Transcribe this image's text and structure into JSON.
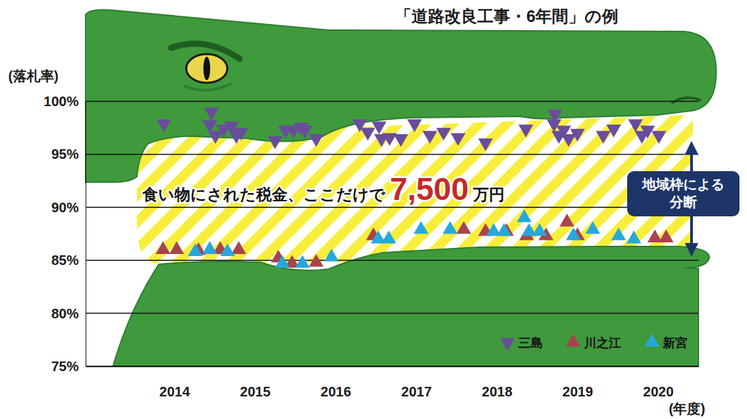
{
  "chart_data": {
    "type": "scatter",
    "title": "「道路改良工事・6年間」の例",
    "y_label": "(落札率)",
    "x_label": "(年度)",
    "xlim": [
      2012.9,
      2020.5
    ],
    "xticks": [
      2014,
      2015,
      2016,
      2017,
      2018,
      2019,
      2020
    ],
    "ylim": [
      75,
      100
    ],
    "yticks": [
      {
        "value": 75,
        "label": "75%"
      },
      {
        "value": 80,
        "label": "80%"
      },
      {
        "value": 85,
        "label": "85%"
      },
      {
        "value": 90,
        "label": "90%"
      },
      {
        "value": 95,
        "label": "95%"
      },
      {
        "value": 100,
        "label": "100%"
      }
    ],
    "grid": true,
    "legend": "lower right",
    "annotations": [
      {
        "text": "食い物にされた税金、ここだけで 7,500 万円"
      },
      {
        "lines": [
          "地域枠による",
          "分断"
        ]
      }
    ],
    "series": [
      {
        "name": "三島",
        "color": "#6a4c9c",
        "marker": "triangle-down",
        "x": [
          2013.87,
          2014.46,
          2014.44,
          2014.51,
          2014.61,
          2014.71,
          2014.77,
          2014.83,
          2015.25,
          2015.38,
          2015.48,
          2015.57,
          2015.62,
          2015.76,
          2016.3,
          2016.4,
          2016.54,
          2016.57,
          2016.67,
          2016.81,
          2016.98,
          2017.17,
          2017.34,
          2017.52,
          2017.86,
          2018.36,
          2018.72,
          2018.71,
          2018.77,
          2018.83,
          2018.89,
          2019.0,
          2019.32,
          2019.45,
          2019.72,
          2019.8,
          2019.87,
          2020.01
        ],
        "values": [
          97.9,
          99.0,
          97.8,
          96.8,
          97.4,
          97.7,
          96.8,
          97.1,
          96.3,
          97.3,
          97.3,
          97.6,
          97.3,
          96.5,
          97.9,
          97.1,
          97.7,
          96.5,
          96.6,
          96.5,
          97.9,
          96.8,
          97.1,
          96.6,
          96.1,
          97.4,
          98.8,
          97.9,
          96.8,
          97.3,
          96.5,
          97.0,
          96.8,
          97.4,
          97.9,
          96.8,
          97.3,
          96.8
        ]
      },
      {
        "name": "川之江",
        "color": "#a8444c",
        "marker": "triangle-up",
        "x": [
          2013.86,
          2014.03,
          2014.3,
          2014.57,
          2014.8,
          2015.29,
          2015.46,
          2015.76,
          2016.47,
          2017.59,
          2017.86,
          2018.12,
          2018.37,
          2018.61,
          2018.87,
          2019.0,
          2019.96,
          2020.1
        ],
        "values": [
          86.0,
          86.0,
          85.9,
          86.0,
          86.0,
          85.2,
          84.7,
          84.8,
          87.3,
          87.9,
          87.7,
          87.7,
          87.3,
          87.3,
          88.6,
          87.3,
          87.1,
          87.1
        ]
      },
      {
        "name": "新宮",
        "color": "#27a8dc",
        "marker": "triangle-up",
        "x": [
          2014.26,
          2014.44,
          2014.66,
          2015.34,
          2015.59,
          2015.95,
          2016.53,
          2016.66,
          2017.06,
          2017.42,
          2017.96,
          2018.09,
          2018.34,
          2018.4,
          2018.53,
          2018.95,
          2019.19,
          2019.51,
          2019.7
        ],
        "values": [
          85.8,
          86.0,
          85.8,
          84.7,
          84.7,
          85.3,
          87.0,
          87.0,
          87.9,
          87.9,
          87.7,
          87.7,
          89.0,
          87.7,
          87.7,
          87.3,
          87.9,
          87.3,
          87.0
        ]
      }
    ]
  }
}
